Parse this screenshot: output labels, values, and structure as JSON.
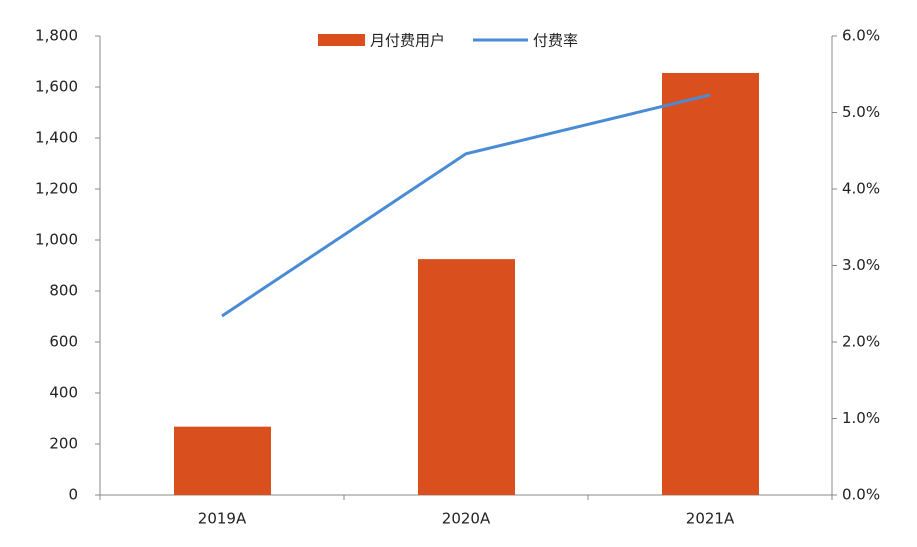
{
  "chart_data": {
    "type": "bar-line",
    "categories": [
      "2019A",
      "2020A",
      "2021A"
    ],
    "series": [
      {
        "name": "月付费用户",
        "type": "bar",
        "color": "#d94f1e",
        "values": [
          268,
          925,
          1655
        ]
      },
      {
        "name": "付费率",
        "type": "line",
        "color": "#4a8bd6",
        "axis": "y2",
        "values": [
          2.34,
          4.46,
          5.23
        ]
      }
    ],
    "ylim": [
      0,
      1800
    ],
    "yticks": [
      0,
      200,
      400,
      600,
      800,
      {
        "value": 1000,
        "label": "1,000"
      },
      {
        "value": 1200,
        "label": "1,200"
      },
      {
        "value": 1400,
        "label": "1,400"
      },
      {
        "value": 1600,
        "label": "1,600"
      },
      {
        "value": 1800,
        "label": "1,800"
      }
    ],
    "y2lim": [
      0,
      6
    ],
    "y2ticks": [
      {
        "value": 0,
        "label": "0.0%"
      },
      {
        "value": 1,
        "label": "1.0%"
      },
      {
        "value": 2,
        "label": "2.0%"
      },
      {
        "value": 3,
        "label": "3.0%"
      },
      {
        "value": 4,
        "label": "4.0%"
      },
      {
        "value": 5,
        "label": "5.0%"
      },
      {
        "value": 6,
        "label": "6.0%"
      }
    ],
    "grid": false,
    "legend": "top"
  }
}
